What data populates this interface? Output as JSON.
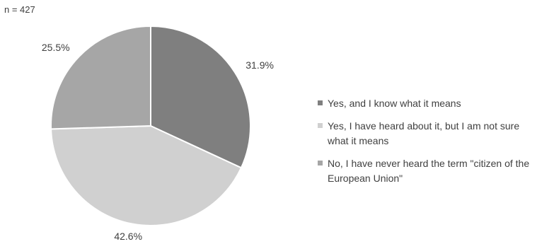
{
  "sample_label": "n = 427",
  "chart_data": {
    "type": "pie",
    "title": "",
    "slices": [
      {
        "label": "Yes, and I know what it means",
        "value": 31.9,
        "display": "31.9%",
        "color": "#7f7f7f"
      },
      {
        "label": "Yes, I have heard about it, but I am not sure what it means",
        "value": 42.6,
        "display": "42.6%",
        "color": "#d0d0d0"
      },
      {
        "label": "No, I have never heard the term \"citizen of the European Union\"",
        "value": 25.5,
        "display": "25.5%",
        "color": "#a6a6a6"
      }
    ],
    "start_angle": "12 o'clock",
    "direction": "clockwise",
    "legend_position": "right"
  },
  "legend": {
    "items": [
      {
        "text": "Yes, and I know what it means",
        "color": "#7f7f7f"
      },
      {
        "text": "Yes, I have heard about it, but I am not sure what it means",
        "color": "#d0d0d0"
      },
      {
        "text": "No, I have never heard the term \"citizen of the European Union\"",
        "color": "#a6a6a6"
      }
    ]
  }
}
